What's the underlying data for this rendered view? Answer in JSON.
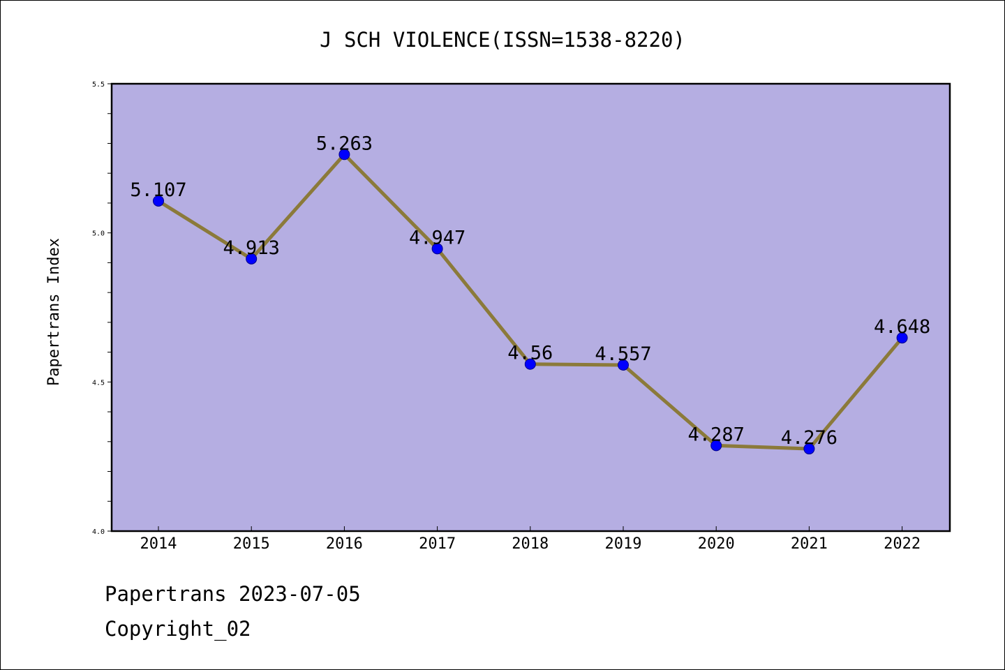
{
  "chart_data": {
    "type": "line",
    "title": "J SCH VIOLENCE(ISSN=1538-8220)",
    "xlabel": "",
    "ylabel": "Papertrans Index",
    "categories": [
      "2014",
      "2015",
      "2016",
      "2017",
      "2018",
      "2019",
      "2020",
      "2021",
      "2022"
    ],
    "values": [
      5.107,
      4.913,
      5.263,
      4.947,
      4.56,
      4.557,
      4.287,
      4.276,
      4.648
    ],
    "data_labels": [
      "5.107",
      "4.913",
      "5.263",
      "4.947",
      "4.56",
      "4.557",
      "4.287",
      "4.276",
      "4.648"
    ],
    "ylim": [
      4.0,
      5.5
    ],
    "y_ticks": [
      "4.0",
      "4.5",
      "5.0",
      "5.5"
    ],
    "y_minor_step": 0.1,
    "grid": false,
    "colors": {
      "plot_background": "#b5aee2",
      "line": "#8b7a3a",
      "marker": "#0000ff",
      "marker_edge": "#00008b"
    }
  },
  "footer": {
    "line1": "Papertrans 2023-07-05",
    "line2": "Copyright_02"
  }
}
